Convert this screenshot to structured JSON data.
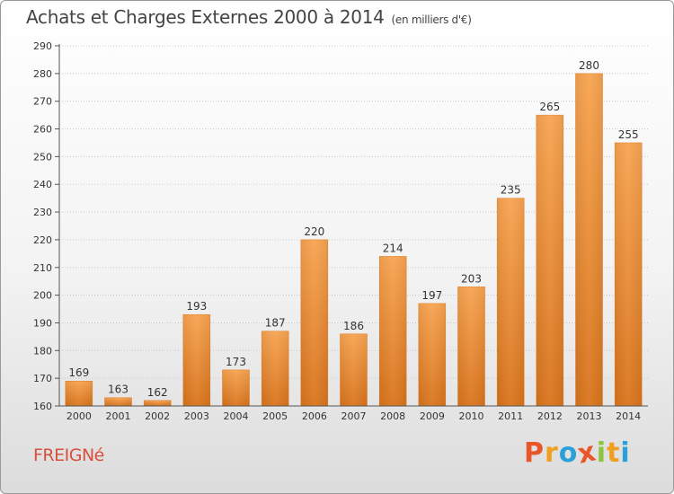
{
  "header": {
    "title": "Achats et Charges Externes 2000 à 2014",
    "subtitle": "(en milliers d'€)"
  },
  "footer": {
    "place_name": "FREIGNé",
    "brand": [
      "P",
      "r",
      "o",
      "x",
      "i",
      "t",
      "i"
    ],
    "brand_colors": [
      "#e8562a",
      "#f0a020",
      "#2a9fd8",
      "#e8562a",
      "#8bc53f",
      "#f0a020",
      "#2a9fd8"
    ]
  },
  "chart_data": {
    "type": "bar",
    "categories": [
      "2000",
      "2001",
      "2002",
      "2003",
      "2004",
      "2005",
      "2006",
      "2007",
      "2008",
      "2009",
      "2010",
      "2011",
      "2012",
      "2013",
      "2014"
    ],
    "values": [
      169,
      163,
      162,
      193,
      173,
      187,
      220,
      186,
      214,
      197,
      203,
      235,
      265,
      280,
      255
    ],
    "ylim": [
      160,
      290
    ],
    "yticks": [
      160,
      170,
      180,
      190,
      200,
      210,
      220,
      230,
      240,
      250,
      260,
      270,
      280,
      290
    ],
    "grid": true,
    "bar_color_top": "#f7a450",
    "bar_color_bottom": "#d9741c"
  }
}
